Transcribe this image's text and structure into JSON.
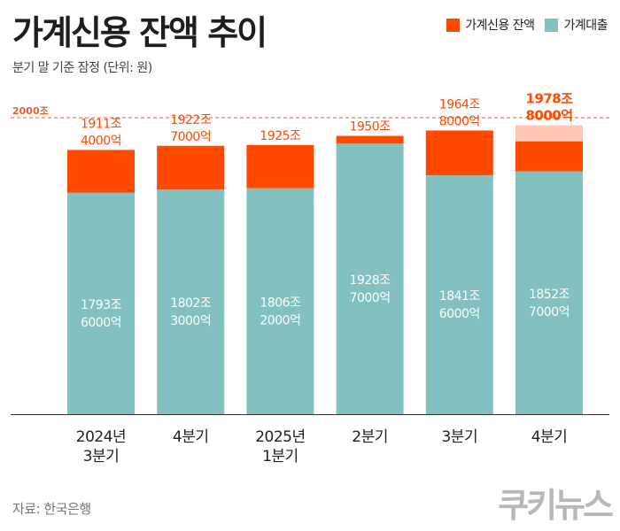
{
  "title": "가계신용 잔액 추이",
  "subtitle": "분기 말 기준 잠정 (단위: 원)",
  "source": "자료: 한국은행",
  "logo": "쿠키뉴스",
  "colors": {
    "credit": "#ff4a00",
    "loan": "#82c1bf",
    "projected": "#ffc6b6",
    "reference": "#e65b3c",
    "label": "#ff4a00"
  },
  "legend": [
    {
      "name": "가계신용 잔액",
      "color": "#ff4a00"
    },
    {
      "name": "가계대출",
      "color": "#82c1bf"
    }
  ],
  "chart_data": {
    "type": "bar",
    "stacked": true,
    "unit": "조 원",
    "categories": [
      [
        "2024년",
        "3분기"
      ],
      [
        "4분기"
      ],
      [
        "2025년",
        "1분기"
      ],
      [
        "2분기"
      ],
      [
        "3분기"
      ],
      [
        "4분기"
      ]
    ],
    "series": [
      {
        "name": "가계대출",
        "values": [
          1793.6,
          1802.3,
          1806.2,
          1928.7,
          1841.6,
          1852.7
        ],
        "labels": [
          [
            "1793조",
            "6000억"
          ],
          [
            "1802조",
            "3000억"
          ],
          [
            "1806조",
            "2000억"
          ],
          [
            "1928조",
            "7000억"
          ],
          [
            "1841조",
            "6000억"
          ],
          [
            "1852조",
            "7000억"
          ]
        ]
      },
      {
        "name": "가계신용 잔액",
        "values": [
          1911.4,
          1922.7,
          1925.0,
          1950.0,
          1964.8,
          1978.8
        ],
        "labels": [
          [
            "1911조",
            "4000억"
          ],
          [
            "1922조",
            "7000억"
          ],
          [
            "1925조"
          ],
          [
            "1950조"
          ],
          [
            "1964조",
            "8000억"
          ],
          [
            "1978조",
            "8000억"
          ]
        ]
      }
    ],
    "projected_index": 5,
    "reference_line": {
      "value": 2000,
      "label": "2000조"
    }
  }
}
